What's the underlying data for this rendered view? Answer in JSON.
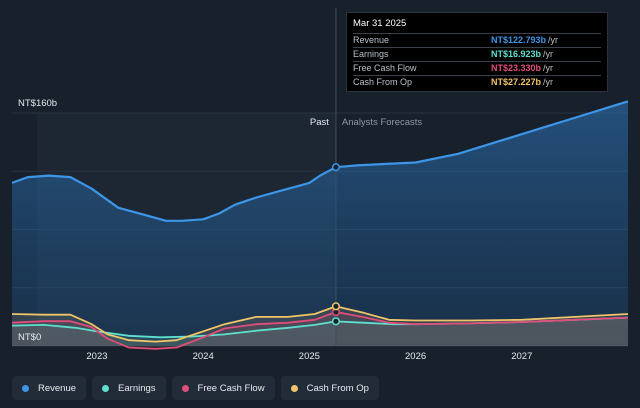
{
  "chart_data": {
    "type": "area",
    "y_axis": {
      "top_label": "NT$160b",
      "bottom_label": "NT$0",
      "ylim": [
        0,
        160
      ]
    },
    "x_axis": {
      "ticks": [
        "2023",
        "2024",
        "2025",
        "2026",
        "2027"
      ],
      "xlim": [
        2022.2,
        2028.0
      ]
    },
    "past_label": "Past",
    "forecast_label": "Analysts Forecasts",
    "divider_x": 2025.25,
    "series": [
      {
        "name": "Revenue",
        "color": "#3d95e8",
        "fill": true,
        "points": [
          [
            2022.2,
            112
          ],
          [
            2022.35,
            116
          ],
          [
            2022.55,
            117
          ],
          [
            2022.75,
            116
          ],
          [
            2022.95,
            108
          ],
          [
            2023.2,
            95
          ],
          [
            2023.45,
            90
          ],
          [
            2023.65,
            86
          ],
          [
            2023.8,
            86
          ],
          [
            2024.0,
            87
          ],
          [
            2024.15,
            91
          ],
          [
            2024.3,
            97
          ],
          [
            2024.5,
            102
          ],
          [
            2024.75,
            107
          ],
          [
            2025.0,
            112
          ],
          [
            2025.1,
            117
          ],
          [
            2025.25,
            122.793
          ],
          [
            2025.45,
            124
          ],
          [
            2025.7,
            125
          ],
          [
            2026.0,
            126
          ],
          [
            2026.4,
            132
          ],
          [
            2026.8,
            141
          ],
          [
            2027.2,
            150
          ],
          [
            2027.6,
            159
          ],
          [
            2028.0,
            168
          ]
        ]
      },
      {
        "name": "Earnings",
        "color": "#5ee0cf",
        "fill": false,
        "points": [
          [
            2022.2,
            14
          ],
          [
            2022.5,
            14.5
          ],
          [
            2022.8,
            12.5
          ],
          [
            2023.0,
            10
          ],
          [
            2023.3,
            7
          ],
          [
            2023.6,
            6
          ],
          [
            2023.9,
            6.5
          ],
          [
            2024.2,
            8
          ],
          [
            2024.5,
            10.5
          ],
          [
            2024.8,
            12.5
          ],
          [
            2025.05,
            14.5
          ],
          [
            2025.25,
            16.923
          ],
          [
            2025.5,
            16
          ],
          [
            2025.8,
            15
          ],
          [
            2026.0,
            15
          ],
          [
            2026.5,
            15.5
          ],
          [
            2027.0,
            16.5
          ],
          [
            2027.5,
            18
          ],
          [
            2028.0,
            19.5
          ]
        ]
      },
      {
        "name": "Free Cash Flow",
        "color": "#e04d7a",
        "fill": false,
        "points": [
          [
            2022.2,
            16
          ],
          [
            2022.5,
            17
          ],
          [
            2022.75,
            17
          ],
          [
            2022.95,
            13
          ],
          [
            2023.1,
            5
          ],
          [
            2023.3,
            -1
          ],
          [
            2023.55,
            -2
          ],
          [
            2023.75,
            -1
          ],
          [
            2024.0,
            6
          ],
          [
            2024.2,
            12
          ],
          [
            2024.5,
            15
          ],
          [
            2024.8,
            16
          ],
          [
            2025.05,
            18
          ],
          [
            2025.25,
            23.33
          ],
          [
            2025.5,
            20
          ],
          [
            2025.75,
            16
          ],
          [
            2026.0,
            15
          ],
          [
            2026.5,
            15.5
          ],
          [
            2027.0,
            16.5
          ],
          [
            2027.5,
            18
          ],
          [
            2028.0,
            19.5
          ]
        ]
      },
      {
        "name": "Cash From Op",
        "color": "#f2c468",
        "fill": false,
        "points": [
          [
            2022.2,
            22
          ],
          [
            2022.5,
            21.5
          ],
          [
            2022.75,
            21.5
          ],
          [
            2022.95,
            15
          ],
          [
            2023.1,
            8
          ],
          [
            2023.3,
            4
          ],
          [
            2023.55,
            3
          ],
          [
            2023.75,
            4
          ],
          [
            2024.0,
            10
          ],
          [
            2024.2,
            15
          ],
          [
            2024.5,
            20
          ],
          [
            2024.8,
            20
          ],
          [
            2025.05,
            22
          ],
          [
            2025.25,
            27.227
          ],
          [
            2025.5,
            23
          ],
          [
            2025.75,
            18
          ],
          [
            2026.0,
            17.5
          ],
          [
            2026.5,
            17.5
          ],
          [
            2027.0,
            18
          ],
          [
            2027.5,
            20
          ],
          [
            2028.0,
            22
          ]
        ]
      }
    ]
  },
  "tooltip": {
    "date": "Mar 31 2025",
    "rows": [
      {
        "label": "Revenue",
        "value": "NT$122.793b",
        "unit": "/yr",
        "color": "#3d95e8"
      },
      {
        "label": "Earnings",
        "value": "NT$16.923b",
        "unit": "/yr",
        "color": "#5ee0cf"
      },
      {
        "label": "Free Cash Flow",
        "value": "NT$23.330b",
        "unit": "/yr",
        "color": "#e04d7a"
      },
      {
        "label": "Cash From Op",
        "value": "NT$27.227b",
        "unit": "/yr",
        "color": "#f2c468"
      }
    ]
  },
  "legend": [
    {
      "label": "Revenue",
      "color": "#3d95e8"
    },
    {
      "label": "Earnings",
      "color": "#5ee0cf"
    },
    {
      "label": "Free Cash Flow",
      "color": "#e04d7a"
    },
    {
      "label": "Cash From Op",
      "color": "#f2c468"
    }
  ]
}
